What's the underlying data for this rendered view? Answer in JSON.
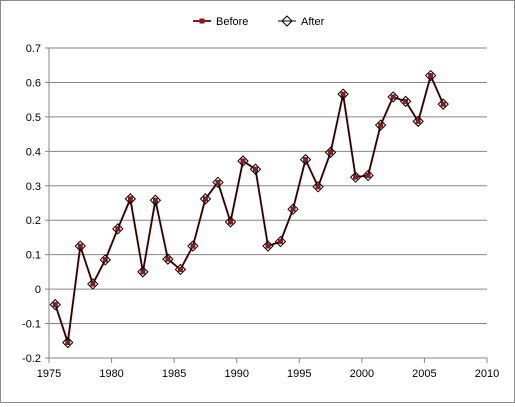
{
  "chart_data": {
    "type": "line",
    "title": "",
    "xlabel": "",
    "ylabel": "",
    "xlim": [
      1975,
      2010
    ],
    "ylim": [
      -0.2,
      0.7
    ],
    "xticks": [
      "1975",
      "1980",
      "1985",
      "1990",
      "1995",
      "2000",
      "2005",
      "2010"
    ],
    "yticks": [
      "-0.2",
      "-0.1",
      "0",
      "0.1",
      "0.2",
      "0.3",
      "0.4",
      "0.5",
      "0.6",
      "0.7"
    ],
    "grid": "horizontal",
    "legend_position": "top",
    "x": [
      1975.5,
      1976.5,
      1977.5,
      1978.5,
      1979.5,
      1980.5,
      1981.5,
      1982.5,
      1983.5,
      1984.5,
      1985.5,
      1986.5,
      1987.5,
      1988.5,
      1989.5,
      1990.5,
      1991.5,
      1992.5,
      1993.5,
      1994.5,
      1995.5,
      1996.5,
      1997.5,
      1998.5,
      1999.5,
      2000.5,
      2001.5,
      2002.5,
      2003.5,
      2004.5,
      2005.5,
      2006.5
    ],
    "series": [
      {
        "name": "Before",
        "color": "#8b1a1a",
        "marker": "square",
        "values": [
          -0.045,
          -0.155,
          0.125,
          0.015,
          0.085,
          0.175,
          0.262,
          0.05,
          0.258,
          0.087,
          0.057,
          0.125,
          0.262,
          0.31,
          0.195,
          0.372,
          0.348,
          0.125,
          0.138,
          0.232,
          0.376,
          0.297,
          0.397,
          0.566,
          0.325,
          0.33,
          0.476,
          0.558,
          0.545,
          0.487,
          0.62,
          0.537
        ]
      },
      {
        "name": "After",
        "color": "#000000",
        "marker": "diamond",
        "values": [
          -0.045,
          -0.155,
          0.125,
          0.015,
          0.085,
          0.175,
          0.262,
          0.05,
          0.258,
          0.087,
          0.057,
          0.125,
          0.262,
          0.31,
          0.195,
          0.372,
          0.348,
          0.125,
          0.138,
          0.232,
          0.376,
          0.297,
          0.397,
          0.566,
          0.325,
          0.33,
          0.476,
          0.558,
          0.545,
          0.487,
          0.62,
          0.537
        ]
      }
    ]
  }
}
